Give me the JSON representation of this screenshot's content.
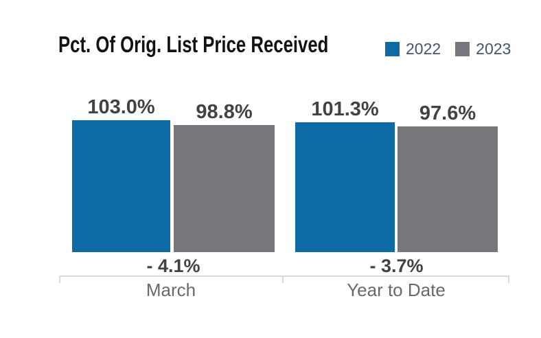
{
  "title": "Pct. Of Orig. List Price Received",
  "legend": [
    {
      "label": "2022",
      "color": "#0e6aa7"
    },
    {
      "label": "2023",
      "color": "#77777b"
    }
  ],
  "colors": {
    "series_2022": "#0e6aa7",
    "series_2023": "#77777b",
    "axis": "#d9d9d9",
    "title_text": "#121212",
    "value_text": "#404245",
    "category_text": "#666a6d",
    "legend_text": "#44546a"
  },
  "chart_data": {
    "type": "bar",
    "title": "Pct. Of Orig. List Price Received",
    "categories": [
      "March",
      "Year to Date"
    ],
    "series": [
      {
        "name": "2022",
        "values": [
          103.0,
          101.3
        ]
      },
      {
        "name": "2023",
        "values": [
          98.8,
          97.6
        ]
      }
    ],
    "value_labels": [
      [
        "103.0%",
        "98.8%"
      ],
      [
        "101.3%",
        "97.6%"
      ]
    ],
    "diff_labels": [
      "- 4.1%",
      "- 3.7%"
    ],
    "legend_position": "top-right",
    "grid": false,
    "axis": "bottom-only",
    "note": "bar heights truncated (not zero-based)"
  }
}
